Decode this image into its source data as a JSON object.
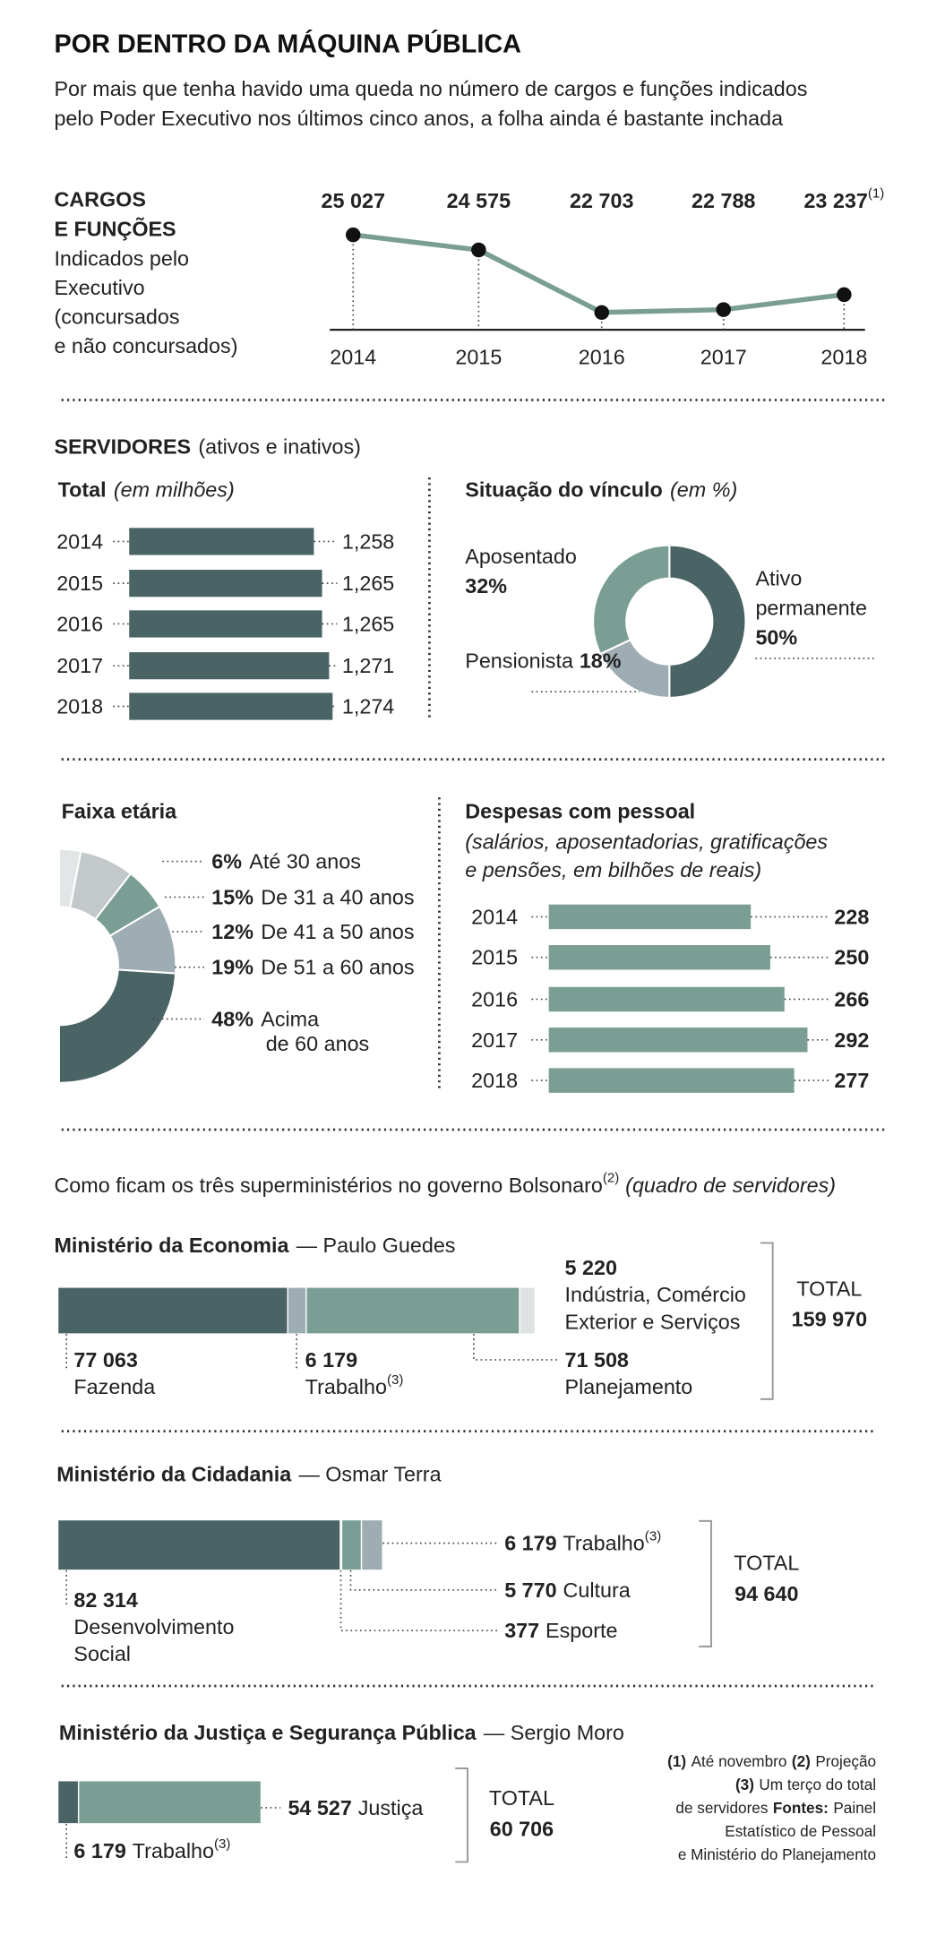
{
  "header": {
    "title": "POR DENTRO DA MÁQUINA PÚBLICA",
    "subtitle": [
      "Por mais que tenha havido uma queda no número de cargos e funções indicados",
      "pelo Poder Executivo nos últimos cinco anos, a folha ainda é bastante inchada"
    ]
  },
  "sections": {
    "servidores": {
      "title": "SERVIDORES",
      "note": "(ativos e inativos)"
    },
    "ministerios": {
      "title": "Como ficam os três superministérios no governo Bolsonaro",
      "marker": "(2)",
      "note": "(quadro de servidores)"
    }
  },
  "chart_data": [
    {
      "type": "line",
      "title": [
        "CARGOS",
        "E FUNÇÕES"
      ],
      "subtitle": [
        "Indicados pelo",
        "Executivo",
        "(concursados",
        "e não concursados)"
      ],
      "categories": [
        "2014",
        "2015",
        "2016",
        "2017",
        "2018"
      ],
      "values": [
        25027,
        24575,
        22703,
        22788,
        23237
      ],
      "value_labels": [
        "25 027",
        "24 575",
        "22 703",
        "22 788",
        "23 237"
      ],
      "note": "(1)",
      "ylim": [
        22000,
        25500
      ],
      "color": "#7a9e94"
    },
    {
      "type": "bar",
      "title": "Total",
      "subtitle": "(em milhões)",
      "categories": [
        "2014",
        "2015",
        "2016",
        "2017",
        "2018"
      ],
      "values": [
        1.258,
        1.265,
        1.265,
        1.271,
        1.274
      ],
      "value_labels": [
        "1,258",
        "1,265",
        "1,265",
        "1,271",
        "1,274"
      ],
      "xlim": [
        1.1,
        1.28
      ],
      "color": "#4a6466"
    },
    {
      "type": "donut",
      "title": "Situação do vínculo",
      "subtitle": "(em %)",
      "categories": [
        [
          "Ativo",
          "permanente"
        ],
        [
          "Pensionista"
        ],
        [
          "Aposentado"
        ]
      ],
      "values": [
        50,
        18,
        32
      ],
      "value_labels": [
        "50%",
        "18%",
        "32%"
      ],
      "colors": [
        "#4a6466",
        "#9eacb4",
        "#7a9e94"
      ]
    },
    {
      "type": "donut",
      "title": "Faixa etária",
      "arc_degrees": 180,
      "categories": [
        [
          "Até 30 anos"
        ],
        [
          "De 31 a 40 anos"
        ],
        [
          "De 41 a 50 anos"
        ],
        [
          "De 51 a 60 anos"
        ],
        [
          "Acima",
          "de 60 anos"
        ]
      ],
      "values": [
        6,
        15,
        12,
        19,
        48
      ],
      "value_labels": [
        "6%",
        "15%",
        "12%",
        "19%",
        "48%"
      ],
      "colors": [
        "#e3e6e7",
        "#c3c8ca",
        "#7a9e94",
        "#9eacb4",
        "#4a6466"
      ]
    },
    {
      "type": "bar",
      "title": "Despesas com pessoal",
      "subtitle": [
        "(salários, aposentadorias, gratificações",
        "e pensões, em bilhões de reais)"
      ],
      "categories": [
        "2014",
        "2015",
        "2016",
        "2017",
        "2018"
      ],
      "values": [
        228,
        250,
        266,
        292,
        277
      ],
      "xlim": [
        0,
        300
      ],
      "color": "#7a9e94"
    },
    {
      "type": "stacked_bar",
      "title": "Ministério da Economia",
      "subtitle": "— Paulo Guedes",
      "xlim": [
        0,
        160000
      ],
      "series": [
        {
          "name": [
            "Fazenda"
          ],
          "color": "#4a6466",
          "values": [
            77063
          ],
          "value_labels": [
            "77 063"
          ]
        },
        {
          "name": [
            "Trabalho"
          ],
          "note": "(3)",
          "color": "#9eacb4",
          "values": [
            6179
          ],
          "value_labels": [
            "6 179"
          ]
        },
        {
          "name": [
            "Planejamento"
          ],
          "color": "#7a9e94",
          "values": [
            71508
          ],
          "value_labels": [
            "71 508"
          ]
        },
        {
          "name": [
            "Indústria, Comércio",
            "Exterior e Serviços"
          ],
          "color": "#dfe2e3",
          "values": [
            5220
          ],
          "value_labels": [
            "5 220"
          ]
        }
      ],
      "total_title": "TOTAL",
      "total": {
        "value": 159970,
        "label": "159 970"
      }
    },
    {
      "type": "stacked_bar",
      "title": "Ministério da Cidadania",
      "subtitle": "— Osmar Terra",
      "xlim": [
        0,
        95000
      ],
      "series": [
        {
          "name": [
            "Desenvolvimento",
            "Social"
          ],
          "color": "#4a6466",
          "values": [
            82314
          ],
          "value_labels": [
            "82 314"
          ]
        },
        {
          "name": [
            "Esporte"
          ],
          "color": "#c3c8ca",
          "values": [
            377
          ],
          "value_labels": [
            "377"
          ]
        },
        {
          "name": [
            "Cultura"
          ],
          "color": "#7a9e94",
          "values": [
            5770
          ],
          "value_labels": [
            "5 770"
          ]
        },
        {
          "name": [
            "Trabalho"
          ],
          "note": "(3)",
          "color": "#9eacb4",
          "values": [
            6179
          ],
          "value_labels": [
            "6 179"
          ]
        }
      ],
      "total_title": "TOTAL",
      "total": {
        "value": 94640,
        "label": "94 640"
      }
    },
    {
      "type": "stacked_bar",
      "title": "Ministério da Justiça e Segurança Pública",
      "subtitle": "— Sergio Moro",
      "xlim": [
        0,
        61000
      ],
      "series": [
        {
          "name": [
            "Trabalho"
          ],
          "note": "(3)",
          "color": "#4a6466",
          "values": [
            6179
          ],
          "value_labels": [
            "6 179"
          ]
        },
        {
          "name": [
            "Justiça"
          ],
          "color": "#7a9e94",
          "values": [
            54527
          ],
          "value_labels": [
            "54 527"
          ]
        }
      ],
      "total_title": "TOTAL",
      "total": {
        "value": 60706,
        "label": "60 706"
      }
    }
  ],
  "footnotes": {
    "lines": [
      [
        "(1)",
        "Até novembro",
        "(2)",
        "Projeção"
      ],
      [
        "(3)",
        "Um terço do total"
      ],
      [
        "de servidores",
        "Fontes:",
        "Painel"
      ],
      [
        "Estatístico de Pessoal"
      ],
      [
        "e Ministério do Planejamento"
      ]
    ],
    "bold": [
      [
        true,
        false,
        true,
        false
      ],
      [
        true,
        false
      ],
      [
        false,
        true,
        false
      ],
      [
        false
      ],
      [
        false
      ]
    ]
  }
}
